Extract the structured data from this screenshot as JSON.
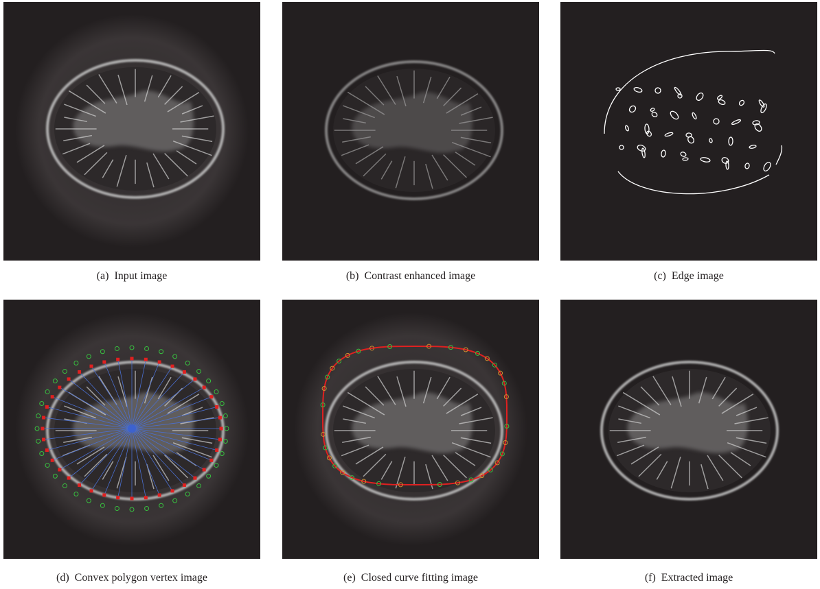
{
  "panels": [
    {
      "label": "(a)",
      "caption": "Input image"
    },
    {
      "label": "(b)",
      "caption": "Contrast enhanced image"
    },
    {
      "label": "(c)",
      "caption": "Edge image"
    },
    {
      "label": "(d)",
      "caption": "Convex polygon vertex image"
    },
    {
      "label": "(e)",
      "caption": "Closed curve fitting image"
    },
    {
      "label": "(f)",
      "caption": "Extracted image"
    }
  ]
}
